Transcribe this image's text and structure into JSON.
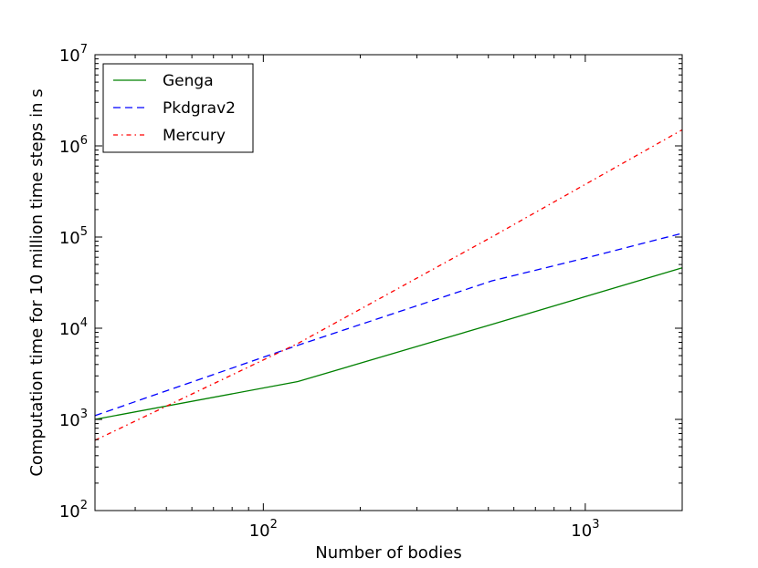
{
  "chart_data": {
    "type": "line",
    "xscale": "log",
    "yscale": "log",
    "xlim": [
      30,
      2000
    ],
    "ylim": [
      100,
      10000000
    ],
    "xlabel": "Number of bodies",
    "ylabel": "Computation time for 10 million time steps in s",
    "x_ticks": [
      {
        "value": 100,
        "base": "10",
        "exp": "2"
      },
      {
        "value": 1000,
        "base": "10",
        "exp": "3"
      }
    ],
    "y_ticks": [
      {
        "value": 100,
        "base": "10",
        "exp": "2"
      },
      {
        "value": 1000,
        "base": "10",
        "exp": "3"
      },
      {
        "value": 10000,
        "base": "10",
        "exp": "4"
      },
      {
        "value": 100000,
        "base": "10",
        "exp": "5"
      },
      {
        "value": 1000000,
        "base": "10",
        "exp": "6"
      },
      {
        "value": 10000000,
        "base": "10",
        "exp": "7"
      }
    ],
    "grid": false,
    "legend_position": "top-left",
    "series": [
      {
        "name": "Genga",
        "color": "#008000",
        "dash": "solid",
        "x": [
          30,
          128,
          512,
          2000
        ],
        "y": [
          1000,
          2600,
          11000,
          46000
        ]
      },
      {
        "name": "Pkdgrav2",
        "color": "#0000ff",
        "dash": "dashed",
        "x": [
          30,
          128,
          512,
          1024,
          2000
        ],
        "y": [
          1100,
          6500,
          33000,
          60000,
          110000
        ]
      },
      {
        "name": "Mercury",
        "color": "#ff0000",
        "dash": "dashdot",
        "x": [
          30,
          128,
          512,
          2000
        ],
        "y": [
          590,
          6800,
          100000,
          1500000
        ]
      }
    ]
  }
}
